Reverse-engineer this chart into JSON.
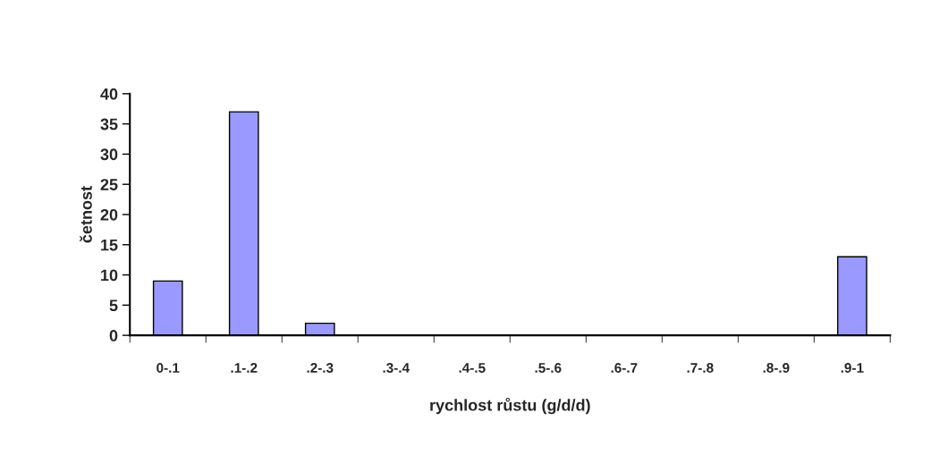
{
  "chart_data": {
    "type": "bar",
    "xlabel": "rychlost růstu (g/d/d)",
    "ylabel": "četnost",
    "categories": [
      "0-.1",
      ".1-.2",
      ".2-.3",
      ".3-.4",
      ".4-.5",
      ".5-.6",
      ".6-.7",
      ".7-.8",
      ".8-.9",
      ".9-1"
    ],
    "values": [
      9,
      37,
      2,
      0,
      0,
      0,
      0,
      0,
      0,
      13
    ],
    "color": "#9999ff",
    "ylim": [
      0,
      40
    ],
    "yticks": [
      0,
      5,
      10,
      15,
      20,
      25,
      30,
      35,
      40
    ],
    "grid": false,
    "legend": false
  }
}
